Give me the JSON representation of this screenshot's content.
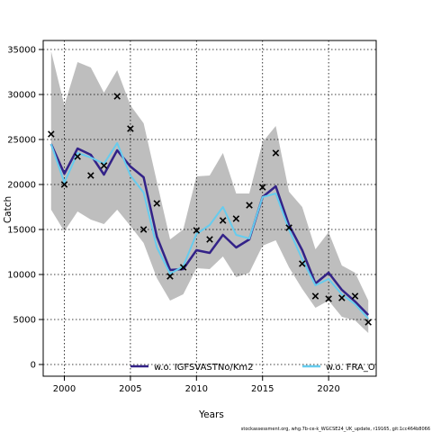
{
  "chart_data": {
    "type": "line",
    "xlabel": "Years",
    "ylabel": "Catch",
    "xlim": [
      1998.4,
      2023.6
    ],
    "ylim": [
      -1300,
      36000
    ],
    "xticks": [
      2000,
      2005,
      2010,
      2015,
      2020
    ],
    "yticks": [
      0,
      5000,
      10000,
      15000,
      20000,
      25000,
      30000,
      35000
    ],
    "grid": true,
    "legend_position": "bottom",
    "colors": {
      "band": "#bebebe",
      "series_a": "#332288",
      "series_b": "#66ccee",
      "observed": "#000000"
    },
    "years": [
      1999,
      2000,
      2001,
      2002,
      2003,
      2004,
      2005,
      2006,
      2007,
      2008,
      2009,
      2010,
      2011,
      2012,
      2013,
      2014,
      2015,
      2016,
      2017,
      2018,
      2019,
      2020,
      2021,
      2022,
      2023
    ],
    "band_upper": [
      34800,
      28800,
      33600,
      33000,
      30200,
      32700,
      28800,
      26800,
      20300,
      13900,
      15000,
      20900,
      21000,
      23500,
      19000,
      19000,
      24700,
      26500,
      19200,
      17500,
      12800,
      14700,
      11000,
      10200,
      7100
    ],
    "band_lower": [
      17200,
      14800,
      17000,
      16100,
      15600,
      17200,
      15400,
      13500,
      9600,
      7100,
      7800,
      10700,
      10600,
      12000,
      9700,
      10200,
      13200,
      13800,
      10800,
      8400,
      6300,
      7100,
      5300,
      4900,
      3500
    ],
    "series": [
      {
        "name": "w.o. IGFSVASTNo/Km2",
        "values": [
          24500,
          21200,
          24000,
          23300,
          21100,
          23800,
          22000,
          20800,
          14200,
          10500,
          10600,
          12700,
          12400,
          14400,
          13000,
          13900,
          18600,
          19800,
          15500,
          12700,
          9000,
          10200,
          8300,
          7000,
          5500
        ]
      },
      {
        "name": "w.o. FRA_O",
        "values": [
          24500,
          20200,
          23500,
          23000,
          22300,
          24600,
          21000,
          19100,
          13000,
          10100,
          10900,
          14500,
          15500,
          17500,
          14400,
          14000,
          18600,
          19000,
          15000,
          11700,
          8800,
          9500,
          7800,
          6700,
          5100
        ]
      }
    ],
    "observed": {
      "x": [
        1999,
        2000,
        2001,
        2002,
        2003,
        2004,
        2005,
        2006,
        2007,
        2008,
        2009,
        2010,
        2011,
        2012,
        2013,
        2014,
        2015,
        2016,
        2017,
        2018,
        2019,
        2020,
        2021,
        2022,
        2023
      ],
      "y": [
        25600,
        20000,
        23100,
        21000,
        22100,
        29800,
        26200,
        15000,
        17900,
        9800,
        10800,
        14900,
        13900,
        16000,
        16200,
        17700,
        19700,
        23500,
        15200,
        11200,
        7600,
        7300,
        7400,
        7600,
        4700
      ]
    }
  },
  "footer": "stockassessment.org, whg.7b-ce-k_WGCSE24_UK_update, r19165, git:1cc464b8066"
}
